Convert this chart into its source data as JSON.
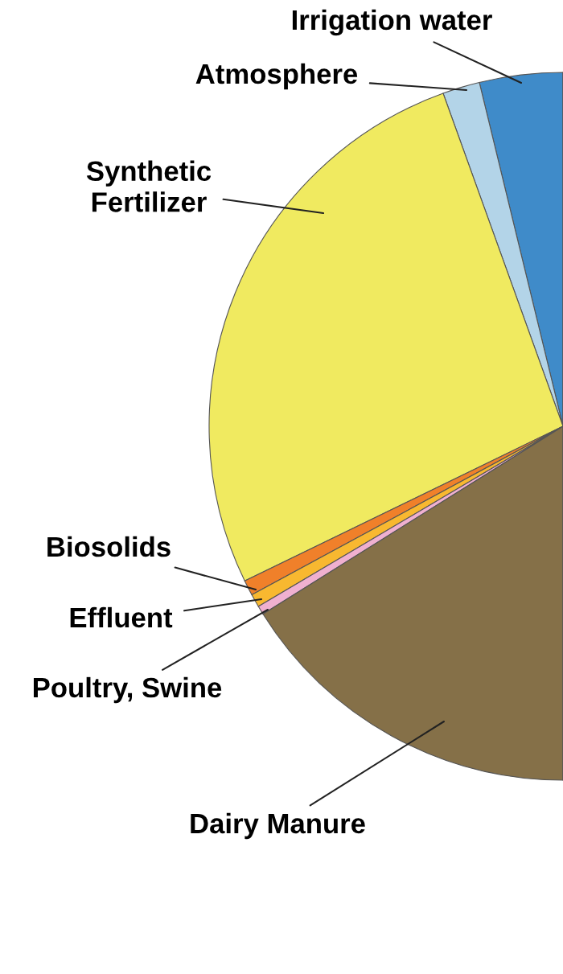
{
  "chart_data": {
    "type": "pie",
    "categories": [
      "Irrigation water",
      "Atmosphere",
      "Synthetic\nFertilizer",
      "Biosolids",
      "Effluent",
      "Poultry, Swine",
      "Dairy Manure",
      null
    ],
    "values": [
      3.8,
      1.7,
      26.7,
      0.7,
      0.6,
      0.4,
      16.1,
      50
    ],
    "colors": [
      "#3f8bc9",
      "#b3d4e8",
      "#f0ea60",
      "#f0802a",
      "#f8b830",
      "#f0b0d0",
      "#857048",
      "#ffffff"
    ]
  }
}
